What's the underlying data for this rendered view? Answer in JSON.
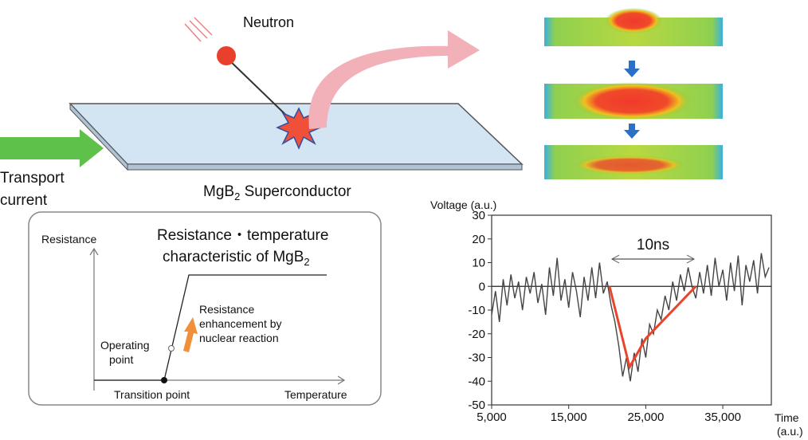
{
  "labels": {
    "neutron": "Neutron",
    "transport_current": [
      "Transport",
      "current"
    ],
    "superconductor": [
      "MgB",
      "2",
      " Superconductor"
    ]
  },
  "inset": {
    "title": [
      "Resistance・temperature",
      "characteristic of MgB",
      "2"
    ],
    "y_axis": "Resistance",
    "x_axis": "Temperature",
    "operating_point": [
      "Operating",
      "point"
    ],
    "transition_point": "Transition point",
    "enhancement": [
      "Resistance",
      "enhancement by",
      "nuclear reaction"
    ]
  },
  "voltage_chart": {
    "type": "line",
    "y_label": "Voltage (a.u.)",
    "x_label": [
      "Time",
      "(a.u.)"
    ],
    "annotation": "10ns",
    "xlim": [
      5000,
      41300
    ],
    "ylim": [
      -50,
      30
    ],
    "xticks": [
      {
        "value": 5000,
        "label": "5,000"
      },
      {
        "value": 15000,
        "label": "15,000"
      },
      {
        "value": 25000,
        "label": "25,000"
      },
      {
        "value": 35000,
        "label": "35,000"
      }
    ],
    "yticks": [
      30,
      20,
      10,
      0,
      -10,
      -20,
      -30,
      -40,
      -50
    ],
    "series": [
      {
        "color": "#444444",
        "x": [
          5000,
          5500,
          6000,
          6500,
          7000,
          7500,
          8000,
          8500,
          9000,
          9500,
          10000,
          10500,
          11000,
          11500,
          12000,
          12500,
          13000,
          13500,
          14000,
          14500,
          15000,
          15500,
          16000,
          16500,
          17000,
          17500,
          18000,
          18500,
          19000,
          19500,
          20000,
          20500,
          21000,
          21500,
          22000,
          22500,
          23000,
          23500,
          24000,
          24500,
          25000,
          25500,
          26000,
          26500,
          27000,
          27500,
          28000,
          28500,
          29000,
          29500,
          30000,
          30500,
          31000,
          31500,
          32000,
          32500,
          33000,
          33500,
          34000,
          34500,
          35000,
          35500,
          36000,
          36500,
          37000,
          37500,
          38000,
          38500,
          39000,
          39500,
          40000,
          40500,
          41000
        ],
        "values": [
          -12,
          -2,
          -15,
          3,
          -8,
          5,
          -5,
          2,
          -10,
          4,
          -3,
          6,
          -7,
          1,
          -12,
          8,
          -4,
          12,
          -6,
          3,
          -9,
          6,
          -2,
          -13,
          4,
          -6,
          8,
          -5,
          10,
          -3,
          2,
          -8,
          -15,
          -25,
          -38,
          -30,
          -40,
          -28,
          -36,
          -22,
          -30,
          -16,
          -20,
          -10,
          -14,
          -4,
          -10,
          2,
          -6,
          5,
          -2,
          8,
          0,
          -5,
          6,
          -3,
          9,
          -4,
          12,
          0,
          7,
          -6,
          10,
          -2,
          13,
          -8,
          9,
          2,
          11,
          -3,
          14,
          4,
          8
        ]
      },
      {
        "color": "#e8452c",
        "x": [
          20300,
          22900,
          25000,
          31500
        ],
        "values": [
          0,
          -34,
          -22,
          0
        ]
      }
    ]
  }
}
